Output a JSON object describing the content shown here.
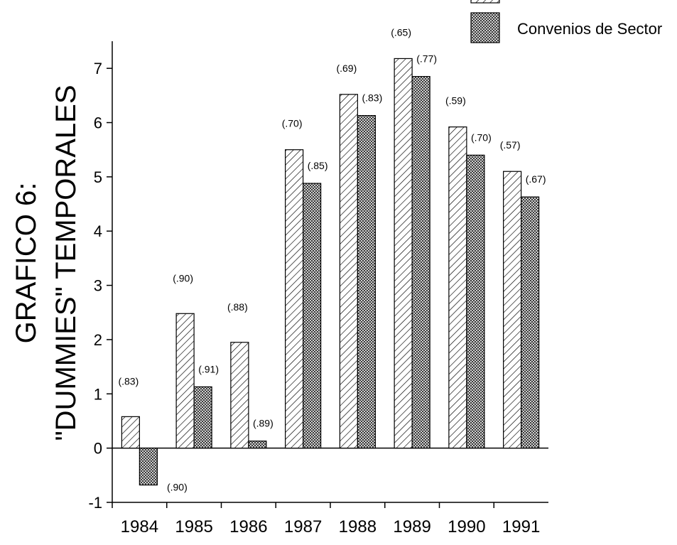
{
  "chart_data": {
    "type": "bar",
    "title_line1": "GRAFICO 6:",
    "title_line2": "\"DUMMIES\" TEMPORALES",
    "categories": [
      "1984",
      "1985",
      "1986",
      "1987",
      "1988",
      "1989",
      "1990",
      "1991"
    ],
    "ylim": [
      -1,
      7.5
    ],
    "yticks": [
      -1,
      0,
      1,
      2,
      3,
      4,
      5,
      6,
      7
    ],
    "grid": false,
    "legend_position": "top-right",
    "series": [
      {
        "name": "",
        "pattern": "diagonal-hatch",
        "values": [
          0.58,
          2.48,
          1.95,
          5.5,
          6.52,
          7.18,
          5.92,
          5.1
        ],
        "labels": [
          "(.83)",
          "(.90)",
          "(.88)",
          "(.70)",
          "(.69)",
          "(.65)",
          "(.59)",
          "(.57)"
        ]
      },
      {
        "name": "Convenios de Sector",
        "pattern": "crosshatch",
        "values": [
          -0.68,
          1.13,
          0.13,
          4.88,
          6.13,
          6.85,
          5.4,
          4.63
        ],
        "labels": [
          "(.90)",
          "(.91)",
          "(.89)",
          "(.85)",
          "(.83)",
          "(.77)",
          "(.70)",
          "(.67)"
        ]
      }
    ]
  }
}
